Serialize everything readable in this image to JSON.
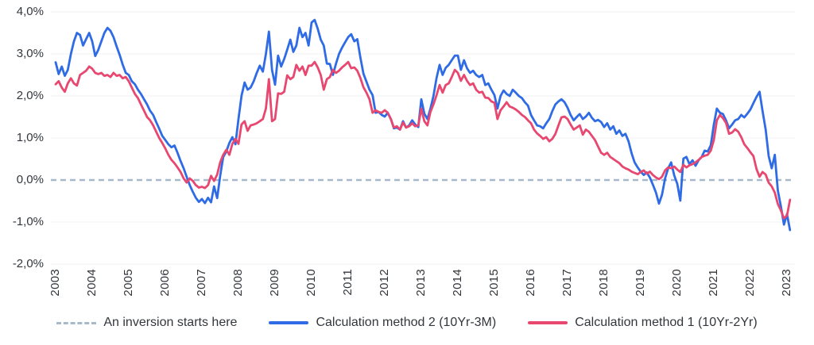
{
  "chart_data": {
    "type": "line",
    "title": "",
    "xlabel": "",
    "ylabel": "",
    "x_unit": "year (monthly points)",
    "x_start_year": 2003,
    "x_ticks": [
      "2003",
      "2004",
      "2005",
      "2006",
      "2007",
      "2008",
      "2009",
      "2010",
      "2011",
      "2012",
      "2013",
      "2014",
      "2015",
      "2016",
      "2017",
      "2018",
      "2019",
      "2020",
      "2021",
      "2022",
      "2023"
    ],
    "y_ticks": [
      {
        "value": 4,
        "label": "4,0%"
      },
      {
        "value": 3,
        "label": "3,0%"
      },
      {
        "value": 2,
        "label": "2,0%"
      },
      {
        "value": 1,
        "label": "1,0%"
      },
      {
        "value": 0,
        "label": "0,0%"
      },
      {
        "value": -1,
        "label": "-1,0%"
      },
      {
        "value": -2,
        "label": "-2,0%"
      }
    ],
    "ylim": [
      -2,
      4
    ],
    "grid": true,
    "legend_position": "bottom",
    "colors": {
      "method2_blue": "#2e6be5",
      "method1_pink": "#e8476f",
      "inversion_dashed": "#a8b9c9",
      "gridline": "#f0f1f3",
      "axis_text": "#32363b"
    },
    "legend": [
      {
        "style": "dashed",
        "color": "#a8b9c9",
        "label": "An inversion starts here"
      },
      {
        "style": "solid",
        "color": "#2e6be5",
        "label": "Calculation method 2 (10Yr-3M)"
      },
      {
        "style": "solid",
        "color": "#e8476f",
        "label": "Calculation method 1 (10Yr-2Yr)"
      }
    ],
    "threshold_line": {
      "value": 0,
      "meaning": "An inversion starts here"
    },
    "series": [
      {
        "name": "Calculation method 2 (10Yr-3M)",
        "color": "#2e6be5",
        "values": [
          2.8,
          2.52,
          2.7,
          2.48,
          2.62,
          3.0,
          3.3,
          3.5,
          3.45,
          3.2,
          3.35,
          3.5,
          3.3,
          2.95,
          3.1,
          3.3,
          3.5,
          3.62,
          3.55,
          3.4,
          3.18,
          2.98,
          2.75,
          2.55,
          2.5,
          2.35,
          2.28,
          2.15,
          2.05,
          1.92,
          1.8,
          1.65,
          1.55,
          1.38,
          1.22,
          1.05,
          0.95,
          0.85,
          0.78,
          0.82,
          0.65,
          0.45,
          0.28,
          0.08,
          -0.12,
          -0.28,
          -0.42,
          -0.52,
          -0.45,
          -0.55,
          -0.42,
          -0.53,
          -0.15,
          -0.43,
          0.1,
          0.55,
          0.68,
          0.88,
          1.02,
          0.85,
          1.45,
          2.0,
          2.32,
          2.15,
          2.2,
          2.35,
          2.55,
          2.72,
          2.58,
          3.0,
          3.53,
          2.62,
          2.27,
          2.96,
          2.7,
          2.88,
          3.1,
          3.34,
          3.05,
          3.2,
          3.62,
          3.4,
          3.5,
          3.2,
          3.75,
          3.81,
          3.6,
          3.34,
          3.2,
          2.77,
          2.76,
          2.5,
          2.77,
          3.0,
          3.15,
          3.28,
          3.4,
          3.47,
          3.3,
          3.35,
          2.92,
          2.53,
          2.34,
          2.15,
          2.02,
          1.6,
          1.62,
          1.55,
          1.51,
          1.6,
          1.45,
          1.23,
          1.25,
          1.2,
          1.4,
          1.25,
          1.3,
          1.42,
          1.32,
          1.26,
          1.92,
          1.58,
          1.45,
          1.7,
          2.0,
          2.43,
          2.74,
          2.5,
          2.67,
          2.74,
          2.85,
          2.96,
          2.96,
          2.62,
          2.85,
          2.66,
          2.55,
          2.6,
          2.5,
          2.45,
          2.5,
          2.26,
          2.3,
          2.15,
          2.02,
          1.7,
          2.0,
          2.13,
          2.05,
          2.0,
          2.15,
          2.08,
          2.0,
          1.95,
          1.85,
          1.77,
          1.55,
          1.42,
          1.3,
          1.28,
          1.23,
          1.35,
          1.45,
          1.64,
          1.8,
          1.87,
          1.92,
          1.85,
          1.72,
          1.55,
          1.42,
          1.5,
          1.57,
          1.45,
          1.51,
          1.6,
          1.48,
          1.4,
          1.43,
          1.38,
          1.26,
          1.35,
          1.2,
          1.28,
          1.1,
          1.18,
          1.05,
          1.1,
          0.92,
          0.64,
          0.42,
          0.3,
          0.2,
          0.12,
          0.18,
          0.06,
          -0.11,
          -0.3,
          -0.56,
          -0.35,
          0.04,
          0.28,
          0.42,
          0.11,
          -0.09,
          -0.49,
          0.51,
          0.55,
          0.38,
          0.47,
          0.34,
          0.47,
          0.55,
          0.7,
          0.68,
          0.83,
          1.32,
          1.7,
          1.6,
          1.57,
          1.42,
          1.23,
          1.32,
          1.42,
          1.45,
          1.55,
          1.49,
          1.58,
          1.68,
          1.83,
          1.98,
          2.1,
          1.64,
          1.2,
          0.57,
          0.28,
          0.6,
          -0.25,
          -0.62,
          -1.06,
          -0.81,
          -1.19
        ]
      },
      {
        "name": "Calculation method 1 (10Yr-2Yr)",
        "color": "#e8476f",
        "values": [
          2.28,
          2.35,
          2.2,
          2.1,
          2.3,
          2.42,
          2.3,
          2.25,
          2.5,
          2.55,
          2.6,
          2.7,
          2.65,
          2.55,
          2.52,
          2.55,
          2.48,
          2.5,
          2.45,
          2.55,
          2.48,
          2.5,
          2.42,
          2.45,
          2.35,
          2.2,
          2.05,
          1.95,
          1.8,
          1.65,
          1.5,
          1.42,
          1.3,
          1.15,
          1.0,
          0.88,
          0.75,
          0.6,
          0.48,
          0.4,
          0.3,
          0.19,
          0.04,
          -0.06,
          0.04,
          -0.02,
          -0.12,
          -0.18,
          -0.16,
          -0.19,
          -0.12,
          0.1,
          -0.02,
          0.13,
          0.42,
          0.6,
          0.72,
          0.6,
          0.86,
          0.98,
          0.86,
          1.32,
          1.4,
          1.17,
          1.3,
          1.32,
          1.35,
          1.4,
          1.45,
          1.7,
          2.4,
          1.4,
          1.45,
          2.06,
          2.05,
          2.1,
          2.49,
          2.4,
          2.45,
          2.74,
          2.6,
          2.7,
          2.5,
          2.72,
          2.72,
          2.81,
          2.68,
          2.5,
          2.15,
          2.4,
          2.45,
          2.62,
          2.55,
          2.6,
          2.68,
          2.74,
          2.81,
          2.66,
          2.68,
          2.6,
          2.43,
          2.21,
          2.08,
          1.92,
          1.6,
          1.66,
          1.62,
          1.6,
          1.66,
          1.6,
          1.45,
          1.25,
          1.28,
          1.2,
          1.37,
          1.25,
          1.28,
          1.35,
          1.28,
          1.3,
          1.7,
          1.4,
          1.3,
          1.62,
          1.8,
          2.02,
          2.26,
          2.08,
          2.26,
          2.3,
          2.45,
          2.62,
          2.55,
          2.36,
          2.5,
          2.36,
          2.26,
          2.3,
          2.15,
          2.08,
          2.1,
          1.96,
          1.95,
          1.87,
          1.84,
          1.45,
          1.66,
          1.75,
          1.85,
          1.75,
          1.72,
          1.68,
          1.62,
          1.55,
          1.5,
          1.42,
          1.35,
          1.2,
          1.11,
          1.05,
          0.98,
          1.02,
          0.92,
          0.98,
          1.1,
          1.3,
          1.49,
          1.51,
          1.45,
          1.32,
          1.2,
          1.25,
          1.3,
          1.08,
          1.2,
          1.15,
          1.05,
          0.95,
          0.8,
          0.65,
          0.6,
          0.65,
          0.55,
          0.5,
          0.45,
          0.4,
          0.32,
          0.28,
          0.25,
          0.2,
          0.17,
          0.14,
          0.19,
          0.23,
          0.15,
          0.2,
          0.12,
          0.06,
          0.02,
          0.08,
          0.23,
          0.3,
          0.28,
          0.32,
          0.25,
          0.19,
          0.36,
          0.3,
          0.35,
          0.38,
          0.42,
          0.48,
          0.55,
          0.58,
          0.6,
          0.7,
          0.95,
          1.42,
          1.55,
          1.47,
          1.36,
          1.1,
          1.13,
          1.21,
          1.15,
          1.02,
          0.85,
          0.76,
          0.66,
          0.57,
          0.26,
          0.08,
          0.19,
          0.13,
          -0.06,
          -0.15,
          -0.3,
          -0.57,
          -0.72,
          -0.91,
          -0.85,
          -0.47
        ]
      }
    ]
  }
}
